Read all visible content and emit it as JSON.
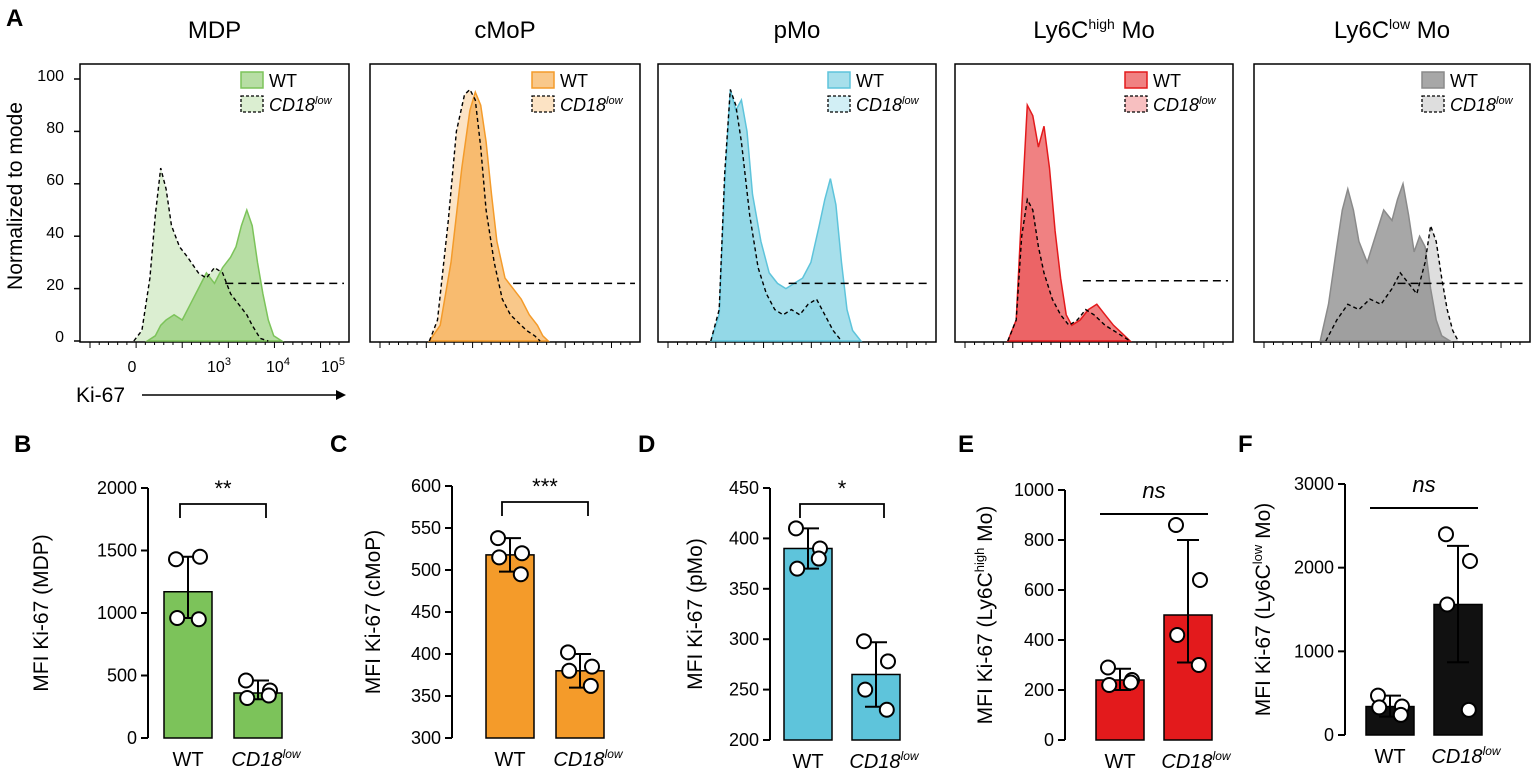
{
  "figure": {
    "panel_letters": [
      "A",
      "B",
      "C",
      "D",
      "E",
      "F"
    ]
  },
  "colors": {
    "MDP": "#7cc35a",
    "cMoP": "#f49b2a",
    "pMo": "#5ec4db",
    "Ly6Chigh": "#e31a1c",
    "Ly6Clow": "#111111",
    "Ly6Clow_hist": "#8a8a8a"
  },
  "panelA": {
    "y_axis_label": "Normalized to mode",
    "y_ticks": [
      "0",
      "20",
      "40",
      "60",
      "80",
      "100"
    ],
    "x_axis_label": "Ki-67",
    "x_ticks": [
      {
        "text": "0",
        "pow": ""
      },
      {
        "text": "10",
        "pow": "3"
      },
      {
        "text": "10",
        "pow": "4"
      },
      {
        "text": "10",
        "pow": "5"
      }
    ],
    "legend_wt": "WT",
    "legend_cd18": "CD18",
    "legend_cd18_sup": "low",
    "histograms": [
      {
        "title": "MDP",
        "title_sup": "",
        "title_suffix": "",
        "color_key": "MDP",
        "wt_curve": [
          [
            0.25,
            0
          ],
          [
            0.28,
            2
          ],
          [
            0.3,
            6
          ],
          [
            0.32,
            8
          ],
          [
            0.35,
            10
          ],
          [
            0.38,
            8
          ],
          [
            0.41,
            14
          ],
          [
            0.44,
            20
          ],
          [
            0.47,
            26
          ],
          [
            0.5,
            22
          ],
          [
            0.53,
            28
          ],
          [
            0.56,
            32
          ],
          [
            0.58,
            36
          ],
          [
            0.6,
            44
          ],
          [
            0.62,
            50
          ],
          [
            0.64,
            44
          ],
          [
            0.66,
            30
          ],
          [
            0.68,
            18
          ],
          [
            0.7,
            8
          ],
          [
            0.72,
            2
          ],
          [
            0.75,
            0
          ]
        ],
        "cd18_curve": [
          [
            0.2,
            0
          ],
          [
            0.23,
            4
          ],
          [
            0.26,
            24
          ],
          [
            0.28,
            48
          ],
          [
            0.3,
            66
          ],
          [
            0.32,
            58
          ],
          [
            0.34,
            44
          ],
          [
            0.37,
            36
          ],
          [
            0.4,
            32
          ],
          [
            0.44,
            26
          ],
          [
            0.47,
            24
          ],
          [
            0.5,
            28
          ],
          [
            0.53,
            26
          ],
          [
            0.56,
            18
          ],
          [
            0.59,
            14
          ],
          [
            0.62,
            10
          ],
          [
            0.64,
            6
          ],
          [
            0.67,
            1
          ],
          [
            0.7,
            0
          ]
        ],
        "dashed_start": 0.54,
        "dashed_y": 22
      },
      {
        "title": "cMoP",
        "title_sup": "",
        "title_suffix": "",
        "color_key": "cMoP",
        "wt_curve": [
          [
            0.22,
            0
          ],
          [
            0.26,
            6
          ],
          [
            0.3,
            30
          ],
          [
            0.34,
            66
          ],
          [
            0.37,
            88
          ],
          [
            0.39,
            95
          ],
          [
            0.41,
            90
          ],
          [
            0.43,
            76
          ],
          [
            0.45,
            56
          ],
          [
            0.47,
            38
          ],
          [
            0.5,
            24
          ],
          [
            0.53,
            20
          ],
          [
            0.56,
            16
          ],
          [
            0.59,
            10
          ],
          [
            0.62,
            6
          ],
          [
            0.64,
            2
          ],
          [
            0.66,
            0
          ]
        ],
        "cd18_curve": [
          [
            0.22,
            0
          ],
          [
            0.25,
            8
          ],
          [
            0.29,
            46
          ],
          [
            0.32,
            80
          ],
          [
            0.35,
            94
          ],
          [
            0.37,
            96
          ],
          [
            0.39,
            92
          ],
          [
            0.41,
            74
          ],
          [
            0.43,
            50
          ],
          [
            0.46,
            30
          ],
          [
            0.49,
            16
          ],
          [
            0.52,
            10
          ],
          [
            0.55,
            7
          ],
          [
            0.58,
            4
          ],
          [
            0.61,
            2
          ],
          [
            0.63,
            0
          ]
        ],
        "dashed_start": 0.53,
        "dashed_y": 22
      },
      {
        "title": "pMo",
        "title_sup": "",
        "title_suffix": "",
        "color_key": "pMo",
        "wt_curve": [
          [
            0.19,
            0
          ],
          [
            0.22,
            10
          ],
          [
            0.24,
            60
          ],
          [
            0.26,
            96
          ],
          [
            0.28,
            88
          ],
          [
            0.3,
            92
          ],
          [
            0.32,
            80
          ],
          [
            0.34,
            56
          ],
          [
            0.37,
            38
          ],
          [
            0.4,
            26
          ],
          [
            0.43,
            22
          ],
          [
            0.46,
            20
          ],
          [
            0.49,
            22
          ],
          [
            0.52,
            24
          ],
          [
            0.55,
            30
          ],
          [
            0.58,
            44
          ],
          [
            0.6,
            54
          ],
          [
            0.62,
            62
          ],
          [
            0.64,
            52
          ],
          [
            0.66,
            30
          ],
          [
            0.68,
            12
          ],
          [
            0.7,
            4
          ],
          [
            0.73,
            0
          ]
        ],
        "cd18_curve": [
          [
            0.19,
            0
          ],
          [
            0.22,
            12
          ],
          [
            0.24,
            64
          ],
          [
            0.26,
            96
          ],
          [
            0.28,
            90
          ],
          [
            0.3,
            76
          ],
          [
            0.33,
            48
          ],
          [
            0.36,
            28
          ],
          [
            0.39,
            18
          ],
          [
            0.42,
            12
          ],
          [
            0.45,
            10
          ],
          [
            0.48,
            12
          ],
          [
            0.51,
            10
          ],
          [
            0.54,
            14
          ],
          [
            0.57,
            16
          ],
          [
            0.6,
            10
          ],
          [
            0.63,
            4
          ],
          [
            0.66,
            0
          ]
        ],
        "dashed_start": 0.47,
        "dashed_y": 22
      },
      {
        "title": "Ly6C",
        "title_sup": "high",
        "title_suffix": " Mo",
        "color_key": "Ly6Chigh",
        "wt_curve": [
          [
            0.19,
            0
          ],
          [
            0.22,
            8
          ],
          [
            0.24,
            50
          ],
          [
            0.26,
            90
          ],
          [
            0.28,
            86
          ],
          [
            0.3,
            74
          ],
          [
            0.32,
            82
          ],
          [
            0.34,
            66
          ],
          [
            0.36,
            42
          ],
          [
            0.38,
            24
          ],
          [
            0.4,
            10
          ],
          [
            0.42,
            6
          ],
          [
            0.45,
            8
          ],
          [
            0.48,
            12
          ],
          [
            0.51,
            14
          ],
          [
            0.54,
            10
          ],
          [
            0.57,
            6
          ],
          [
            0.6,
            3
          ],
          [
            0.63,
            0
          ]
        ],
        "cd18_curve": [
          [
            0.19,
            0
          ],
          [
            0.22,
            8
          ],
          [
            0.24,
            40
          ],
          [
            0.26,
            54
          ],
          [
            0.28,
            50
          ],
          [
            0.3,
            36
          ],
          [
            0.32,
            26
          ],
          [
            0.35,
            16
          ],
          [
            0.38,
            10
          ],
          [
            0.41,
            6
          ],
          [
            0.44,
            8
          ],
          [
            0.47,
            12
          ],
          [
            0.5,
            10
          ],
          [
            0.54,
            6
          ],
          [
            0.57,
            4
          ],
          [
            0.6,
            2
          ],
          [
            0.63,
            0
          ]
        ],
        "dashed_start": 0.46,
        "dashed_y": 23
      },
      {
        "title": "Ly6C",
        "title_sup": "low",
        "title_suffix": " Mo",
        "color_key": "Ly6Clow_hist",
        "wt_curve": [
          [
            0.24,
            0
          ],
          [
            0.27,
            14
          ],
          [
            0.3,
            36
          ],
          [
            0.32,
            50
          ],
          [
            0.34,
            58
          ],
          [
            0.36,
            50
          ],
          [
            0.38,
            38
          ],
          [
            0.41,
            30
          ],
          [
            0.44,
            40
          ],
          [
            0.47,
            50
          ],
          [
            0.5,
            46
          ],
          [
            0.52,
            54
          ],
          [
            0.54,
            60
          ],
          [
            0.56,
            48
          ],
          [
            0.58,
            34
          ],
          [
            0.6,
            40
          ],
          [
            0.62,
            36
          ],
          [
            0.64,
            20
          ],
          [
            0.66,
            8
          ],
          [
            0.68,
            2
          ],
          [
            0.71,
            0
          ]
        ],
        "cd18_curve": [
          [
            0.26,
            0
          ],
          [
            0.3,
            8
          ],
          [
            0.34,
            14
          ],
          [
            0.38,
            12
          ],
          [
            0.42,
            16
          ],
          [
            0.46,
            14
          ],
          [
            0.5,
            20
          ],
          [
            0.53,
            26
          ],
          [
            0.56,
            22
          ],
          [
            0.59,
            18
          ],
          [
            0.62,
            30
          ],
          [
            0.64,
            44
          ],
          [
            0.66,
            38
          ],
          [
            0.68,
            24
          ],
          [
            0.7,
            12
          ],
          [
            0.72,
            4
          ],
          [
            0.74,
            0
          ]
        ],
        "dashed_start": 0.52,
        "dashed_y": 22
      }
    ]
  },
  "chart_data": [
    {
      "type": "bar",
      "panel": "B",
      "title": "",
      "ylabel": "MFI Ki-67 (MDP)",
      "ylabel_sup": "",
      "ylabel_suffix": "",
      "categories": [
        "WT",
        "CD18"
      ],
      "category_sup": [
        "",
        "low"
      ],
      "values": [
        1170,
        360
      ],
      "error": [
        [
          960,
          1450
        ],
        [
          310,
          460
        ]
      ],
      "points": [
        [
          1430,
          1450,
          960,
          950
        ],
        [
          460,
          380,
          320,
          340
        ]
      ],
      "point_fill": "#ffffff",
      "ylim": [
        0,
        2000
      ],
      "yticks": [
        0,
        500,
        1000,
        1500,
        2000
      ],
      "ytick_labels": [
        "0",
        "500",
        "1000",
        "1500",
        "2000"
      ],
      "significance": "**",
      "sig_italic": false,
      "sig_style": "bracket",
      "color_key": "MDP"
    },
    {
      "type": "bar",
      "panel": "C",
      "title": "",
      "ylabel": "MFI Ki-67 (cMoP)",
      "ylabel_sup": "",
      "ylabel_suffix": "",
      "categories": [
        "WT",
        "CD18"
      ],
      "category_sup": [
        "",
        "low"
      ],
      "values": [
        518,
        380
      ],
      "error": [
        [
          498,
          538
        ],
        [
          360,
          400
        ]
      ],
      "points": [
        [
          538,
          520,
          515,
          495
        ],
        [
          402,
          385,
          380,
          362
        ]
      ],
      "point_fill": "#ffffff",
      "ylim": [
        300,
        600
      ],
      "yticks": [
        300,
        350,
        400,
        450,
        500,
        550,
        600
      ],
      "ytick_labels": [
        "300",
        "350",
        "400",
        "450",
        "500",
        "550",
        "600"
      ],
      "significance": "***",
      "sig_italic": false,
      "sig_style": "bracket",
      "color_key": "cMoP"
    },
    {
      "type": "bar",
      "panel": "D",
      "title": "",
      "ylabel": "MFI Ki-67 (pMo)",
      "ylabel_sup": "",
      "ylabel_suffix": "",
      "categories": [
        "WT",
        "CD18"
      ],
      "category_sup": [
        "",
        "low"
      ],
      "values": [
        390,
        265
      ],
      "error": [
        [
          370,
          410
        ],
        [
          233,
          297
        ]
      ],
      "points": [
        [
          410,
          390,
          370,
          380
        ],
        [
          298,
          278,
          250,
          230
        ]
      ],
      "point_fill": "#ffffff",
      "ylim": [
        200,
        450
      ],
      "yticks": [
        200,
        250,
        300,
        350,
        400,
        450
      ],
      "ytick_labels": [
        "200",
        "250",
        "300",
        "350",
        "400",
        "450"
      ],
      "significance": "*",
      "sig_italic": false,
      "sig_style": "bracket",
      "color_key": "pMo"
    },
    {
      "type": "bar",
      "panel": "E",
      "title": "",
      "ylabel": "MFI Ki-67 (Ly6C",
      "ylabel_sup": "high",
      "ylabel_suffix": " Mo)",
      "categories": [
        "WT",
        "CD18"
      ],
      "category_sup": [
        "",
        "low"
      ],
      "values": [
        240,
        500
      ],
      "error": [
        [
          200,
          285
        ],
        [
          310,
          800
        ]
      ],
      "points": [
        [
          290,
          240,
          220,
          230
        ],
        [
          860,
          640,
          420,
          300
        ]
      ],
      "point_fill": "#ffffff",
      "ylim": [
        0,
        1000
      ],
      "yticks": [
        0,
        200,
        400,
        600,
        800,
        1000
      ],
      "ytick_labels": [
        "0",
        "200",
        "400",
        "600",
        "800",
        "1000"
      ],
      "significance": "ns",
      "sig_italic": true,
      "sig_style": "line",
      "color_key": "Ly6Chigh"
    },
    {
      "type": "bar",
      "panel": "F",
      "title": "",
      "ylabel": "MFI Ki-67 (Ly6C",
      "ylabel_sup": "low",
      "ylabel_suffix": " Mo)",
      "categories": [
        "WT",
        "CD18"
      ],
      "category_sup": [
        "",
        "low"
      ],
      "values": [
        340,
        1560
      ],
      "error": [
        [
          220,
          470
        ],
        [
          870,
          2260
        ]
      ],
      "points": [
        [
          470,
          340,
          330,
          240
        ],
        [
          2400,
          2080,
          1560,
          300
        ]
      ],
      "point_fill": "#ffffff",
      "ylim": [
        0,
        3000
      ],
      "yticks": [
        0,
        1000,
        2000,
        3000
      ],
      "ytick_labels": [
        "0",
        "1000",
        "2000",
        "3000"
      ],
      "significance": "ns",
      "sig_italic": true,
      "sig_style": "line",
      "color_key": "Ly6Clow"
    }
  ]
}
